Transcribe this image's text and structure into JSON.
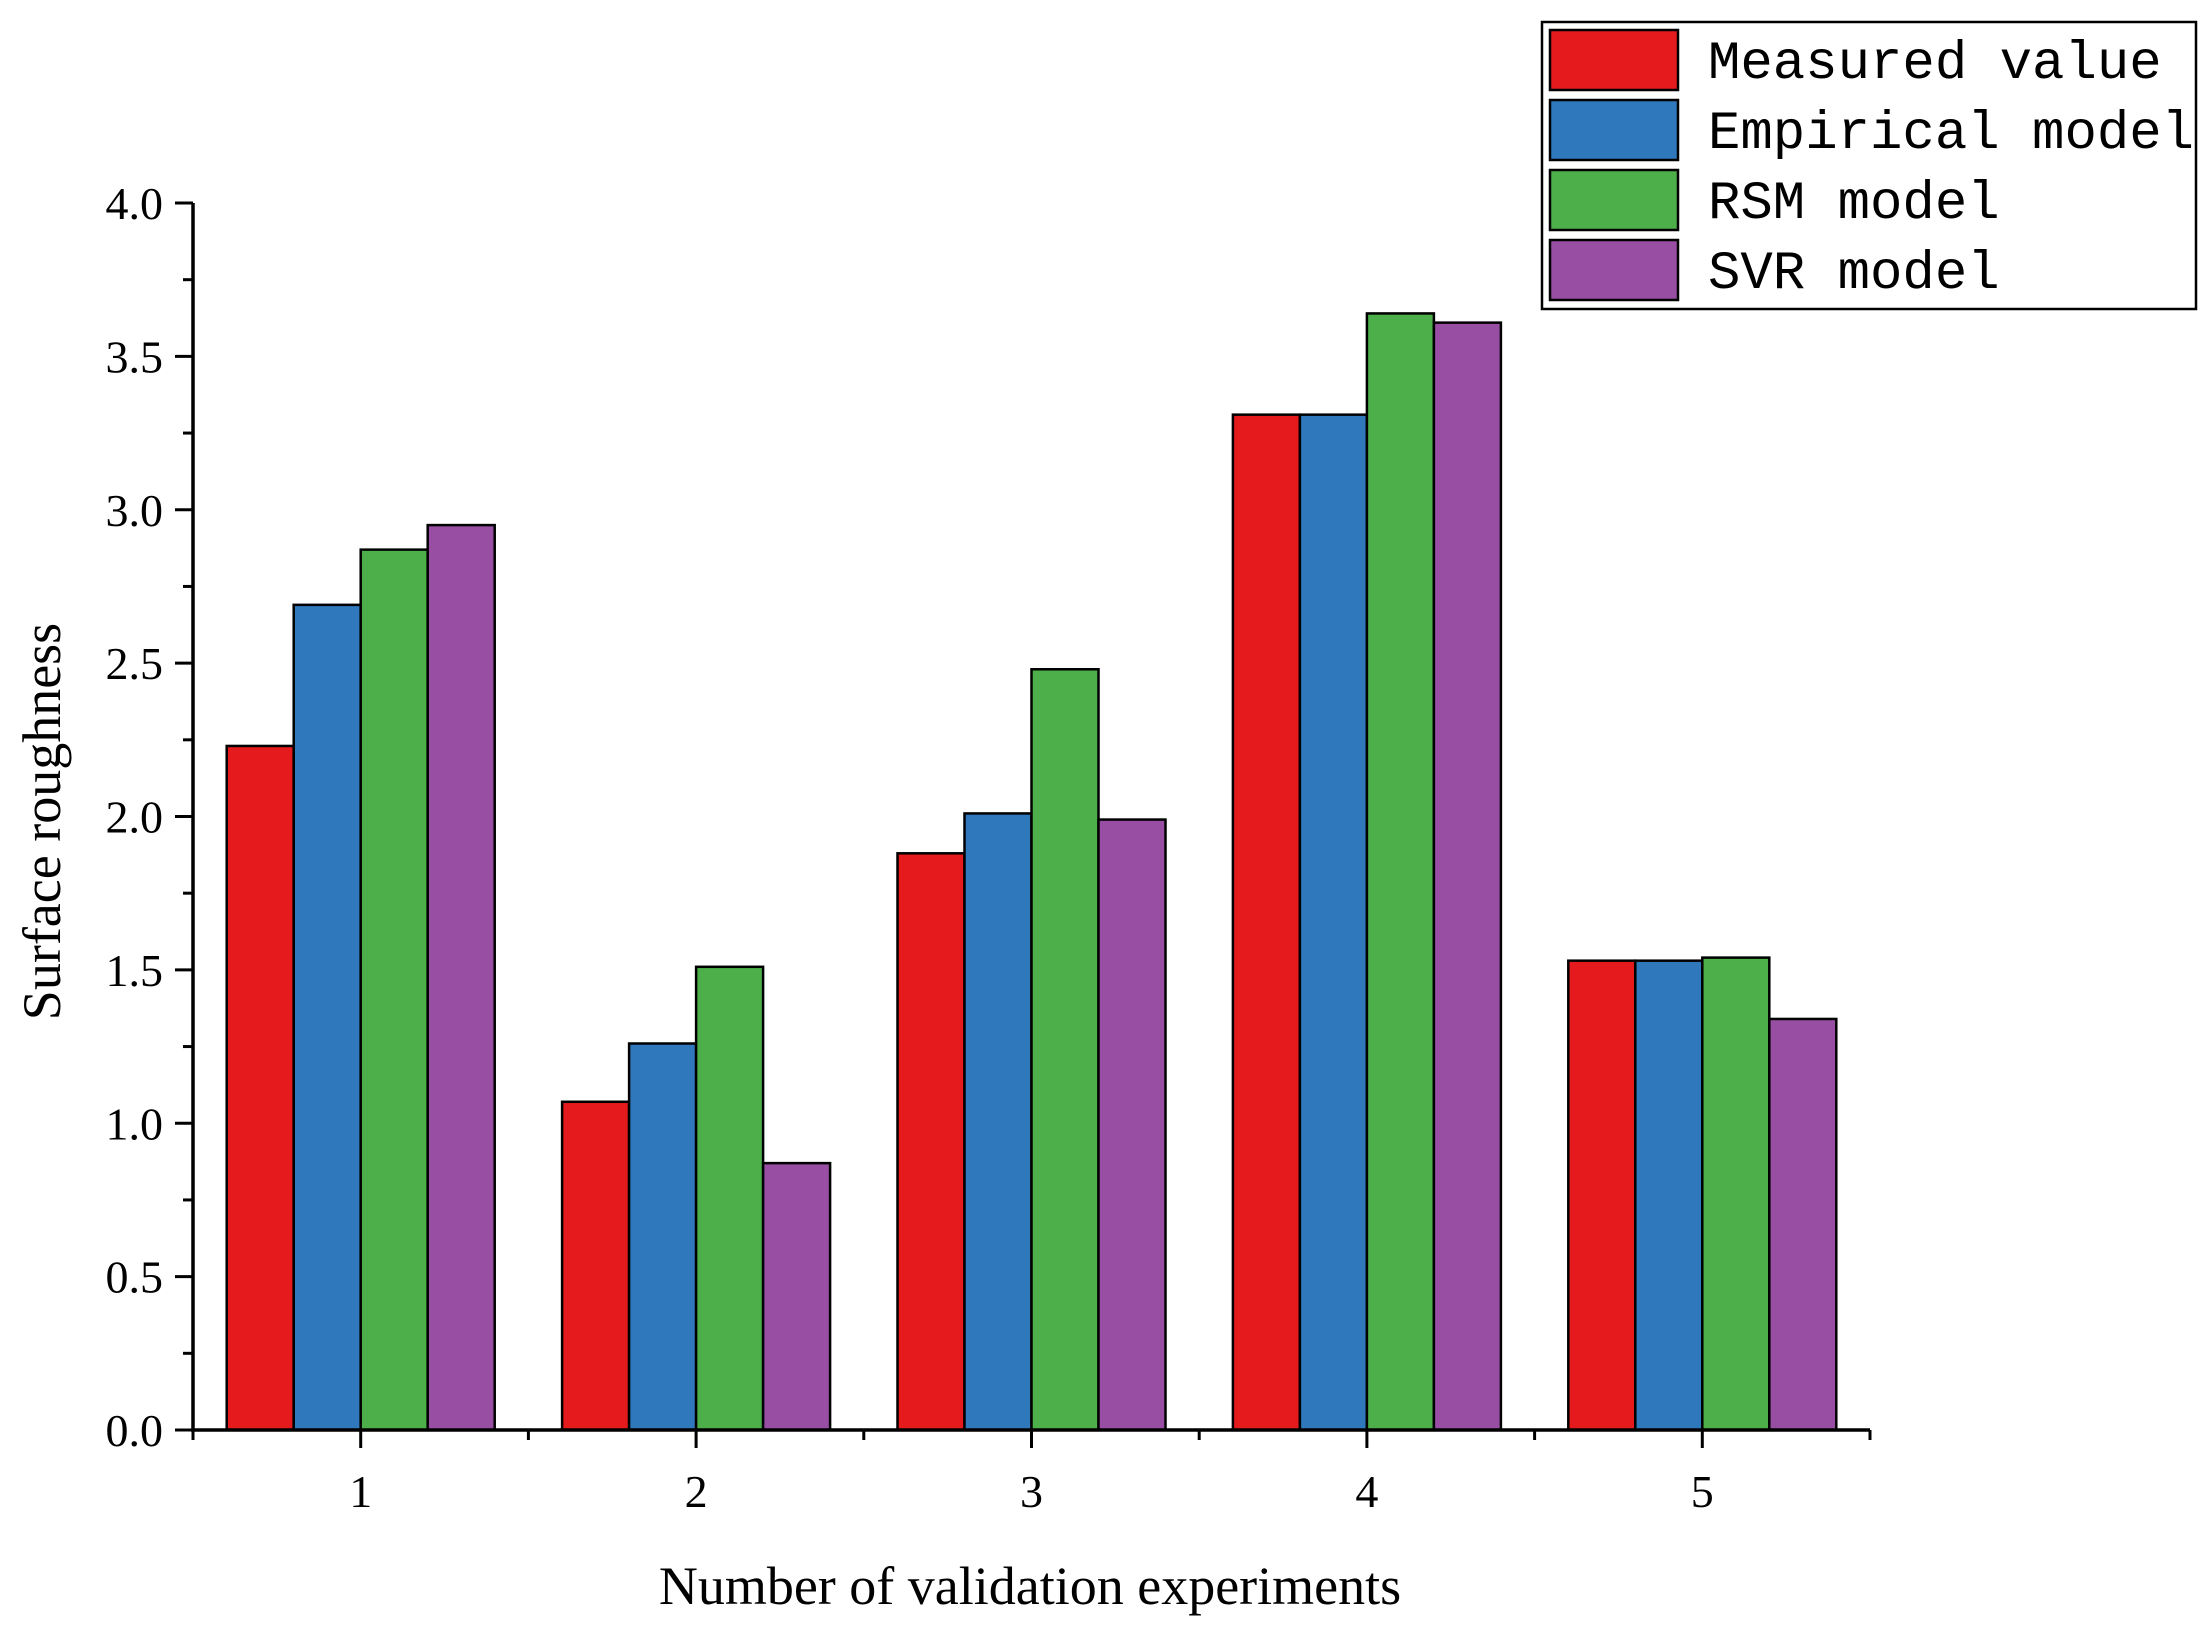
{
  "chart_data": {
    "type": "bar",
    "xlabel": "Number of validation experiments",
    "ylabel": "Surface roughness",
    "categories": [
      "1",
      "2",
      "3",
      "4",
      "5"
    ],
    "ylim": [
      0,
      4.0
    ],
    "yticks": [
      "0.0",
      "0.5",
      "1.0",
      "1.5",
      "2.0",
      "2.5",
      "3.0",
      "3.5",
      "4.0"
    ],
    "legend_position": "top-right",
    "grid": false,
    "series": [
      {
        "name": "Measured value",
        "color": "#e41a1c",
        "values": [
          2.23,
          1.07,
          1.88,
          3.31,
          1.53
        ]
      },
      {
        "name": "Empirical model",
        "color": "#2f78bc",
        "values": [
          2.69,
          1.26,
          2.01,
          3.31,
          1.53
        ]
      },
      {
        "name": "RSM model",
        "color": "#4daf4a",
        "values": [
          2.87,
          1.51,
          2.48,
          3.64,
          1.54
        ]
      },
      {
        "name": "SVR model",
        "color": "#984ea3",
        "values": [
          2.95,
          0.87,
          1.99,
          3.61,
          1.34
        ]
      }
    ]
  }
}
